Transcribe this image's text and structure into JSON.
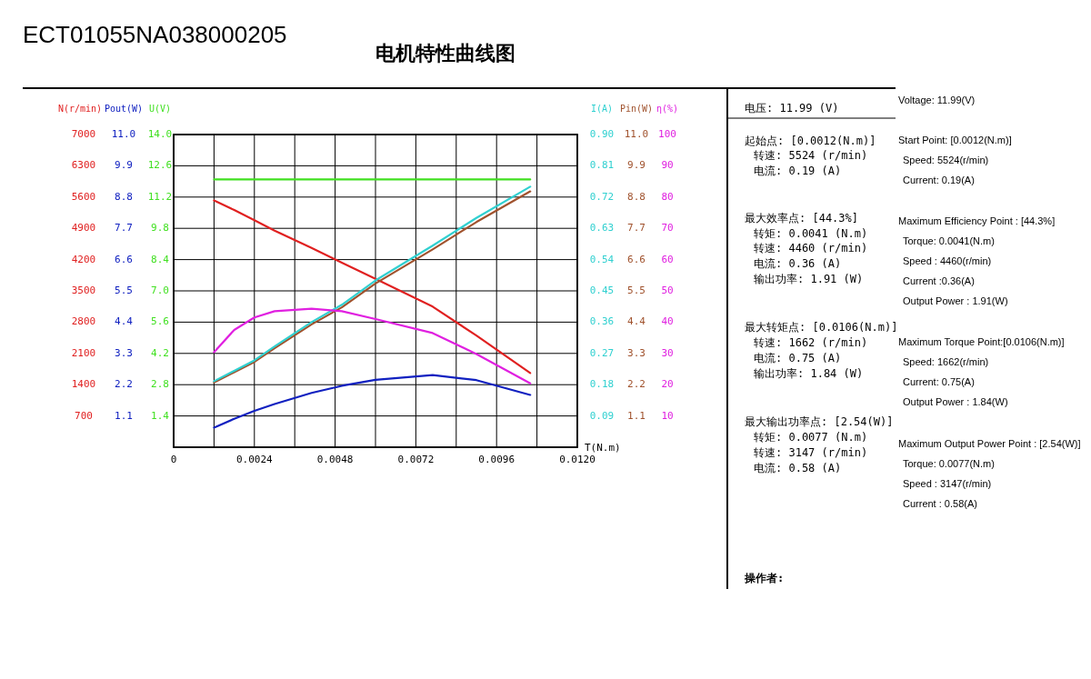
{
  "chart_data": [
    {
      "type": "line",
      "title": "电机特性曲线图",
      "subtitle": "ECT01055NA038000205",
      "xlabel": "T(N.m)",
      "ylabel": "N(r/min)",
      "y2label": "Pout(W)",
      "y3label": "U(V)",
      "x": [
        0.0012,
        0.0018,
        0.0024,
        0.003,
        0.0041,
        0.005,
        0.006,
        0.0077,
        0.009,
        0.0106
      ],
      "xlim": [
        0,
        0.012
      ],
      "xticks": [
        0,
        {
          "value": 0.0012,
          "label": null
        },
        0.0024,
        {
          "value": 0.0036,
          "label": null
        },
        0.0048,
        {
          "value": 0.006,
          "label": null
        },
        0.0072,
        {
          "value": 0.0084,
          "label": null
        },
        0.0096,
        {
          "value": 0.0108,
          "label": null
        },
        {
          "value": 0.012,
          "label": "0.0120"
        }
      ],
      "ylim": [
        0,
        7000
      ],
      "yticks": [
        700,
        1400,
        2100,
        2800,
        3500,
        4200,
        4900,
        5600,
        6300,
        7000
      ],
      "y2lim": [
        0,
        11
      ],
      "y2ticks": [
        1.1,
        2.2,
        3.3,
        4.4,
        5.5,
        6.6,
        7.7,
        8.8,
        9.9,
        {
          "value": 11,
          "label": "11.0"
        }
      ],
      "y3lim": [
        0,
        14
      ],
      "y3ticks": [
        1.4,
        2.8,
        4.2,
        5.6,
        {
          "value": 7,
          "label": "7.0"
        },
        8.4,
        9.8,
        11.2,
        12.6,
        {
          "value": 14,
          "label": "14.0"
        }
      ],
      "grid": true,
      "series": [
        {
          "color": "#e02020",
          "values": [
            5524,
            5310,
            5080,
            4850,
            4460,
            4130,
            3770,
            3147,
            2500,
            1662
          ]
        },
        {
          "color": "#1020c0",
          "axis": "y2",
          "values": [
            0.69,
            1.0,
            1.28,
            1.52,
            1.91,
            2.16,
            2.37,
            2.54,
            2.36,
            1.84
          ]
        },
        {
          "color": "#40e020",
          "axis": "y3",
          "values": [
            11.99,
            11.99,
            11.99,
            11.99,
            11.99,
            11.99,
            11.99,
            11.99,
            11.99,
            11.99
          ]
        }
      ],
      "annotations": [
        "电压:   11.99 (V)",
        "起始点: [0.0012(N.m)]",
        "转速: 5524 (r/min)",
        "电流: 0.19 (A)",
        "最大效率点: [44.3%]",
        "转矩: 0.0041 (N.m)",
        "转速: 4460 (r/min)",
        "电流: 0.36 (A)",
        "输出功率: 1.91 (W)",
        "最大转矩点: [0.0106(N.m)]",
        "转速: 1662 (r/min)",
        "电流: 0.75 (A)",
        "输出功率: 1.84 (W)",
        "最大输出功率点: [2.54(W)]",
        "转矩: 0.0077 (N.m)",
        "转速: 3147 (r/min)",
        "电流: 0.58 (A)",
        "操作者:",
        "Voltage: 11.99(V)",
        "Start Point: [0.0012(N.m)]",
        "Speed: 5524(r/min)",
        "Current: 0.19(A)",
        "Maximum Efficiency Point : [44.3%]",
        "Torque: 0.0041(N.m)",
        "Speed : 4460(r/min)",
        "Current :0.36(A)",
        "Output Power : 1.91(W)",
        "Maximum Torque Point:[0.0106(N.m)]",
        "Speed: 1662(r/min)",
        "Current: 0.75(A)",
        "Output Power : 1.84(W)",
        "Maximum Output Power Point : [2.54(W)]",
        "Torque: 0.0077(N.m)",
        "Speed : 3147(r/min)",
        "Current : 0.58(A)"
      ]
    },
    {
      "type": "line",
      "tick_labels": "y",
      "ylabel": "I(A)",
      "y2label": "Pin(W)",
      "y3label": "η(%)",
      "x": [
        0.0012,
        0.0018,
        0.0024,
        0.003,
        0.0041,
        0.005,
        0.006,
        0.0077,
        0.009,
        0.0106
      ],
      "xlim": [
        0,
        0.012
      ],
      "ylim": [
        0,
        0.9
      ],
      "yticks": [
        0.09,
        0.18,
        0.27,
        0.36,
        0.45,
        0.54,
        0.63,
        0.72,
        0.81,
        {
          "value": 0.9,
          "label": "0.90"
        }
      ],
      "y2lim": [
        0,
        11
      ],
      "y2ticks": [
        1.1,
        2.2,
        3.3,
        4.4,
        5.5,
        6.6,
        7.7,
        8.8,
        9.9,
        {
          "value": 11,
          "label": "11.0"
        }
      ],
      "y3lim": [
        0,
        100
      ],
      "y3ticks": [
        10,
        20,
        30,
        40,
        50,
        60,
        70,
        80,
        90,
        100
      ],
      "series": [
        {
          "color": "#a0522d",
          "axis": "y2",
          "values": [
            2.28,
            2.64,
            3.0,
            3.48,
            4.32,
            4.92,
            5.76,
            6.96,
            7.92,
            9.0
          ]
        },
        {
          "color": "#30d0d0",
          "values": [
            0.19,
            0.22,
            0.25,
            0.29,
            0.36,
            0.41,
            0.48,
            0.58,
            0.66,
            0.75
          ]
        },
        {
          "color": "#e020e0",
          "axis": "y3",
          "values": [
            30.4,
            37.5,
            41.5,
            43.5,
            44.3,
            43.5,
            41.0,
            36.5,
            29.8,
            20.4
          ]
        }
      ]
    }
  ]
}
